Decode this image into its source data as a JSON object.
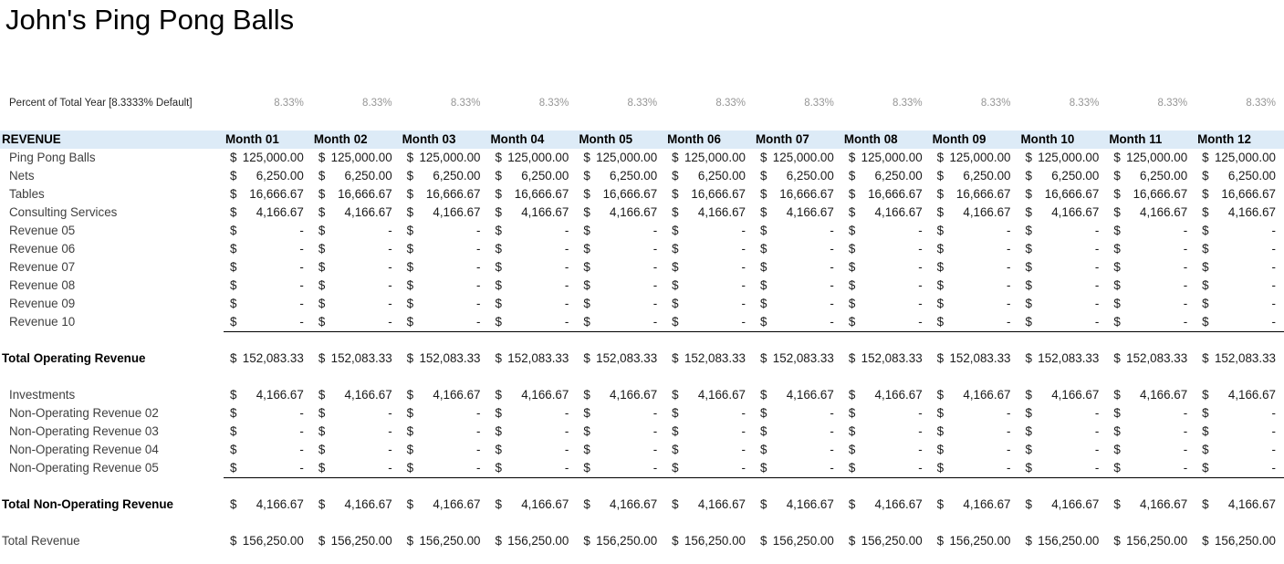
{
  "app": {
    "title": "John's Ping Pong Balls"
  },
  "colors": {
    "sheet_bg": "#ffffff",
    "title_color": "#000000",
    "header_bg": "#DDEBF7",
    "header_text": "#000000",
    "label_color": "#3f3f3f",
    "total_label_color": "#000000",
    "value_color": "#1a1a1a",
    "percent_label_color": "#262626",
    "percent_value_color": "#969696",
    "rule_color": "#000000"
  },
  "currency_symbol": "$",
  "percent_row": {
    "label": "Percent of Total Year [8.3333% Default]",
    "values": [
      "8.33%",
      "8.33%",
      "8.33%",
      "8.33%",
      "8.33%",
      "8.33%",
      "8.33%",
      "8.33%",
      "8.33%",
      "8.33%",
      "8.33%",
      "8.33%"
    ]
  },
  "table": {
    "header_label": "REVENUE",
    "months": [
      "Month 01",
      "Month 02",
      "Month 03",
      "Month 04",
      "Month 05",
      "Month 06",
      "Month 07",
      "Month 08",
      "Month 09",
      "Month 10",
      "Month 11",
      "Month 12"
    ],
    "rows": [
      {
        "label": "Ping Pong Balls",
        "type": "item",
        "indent": true,
        "underline": false,
        "bold": false,
        "values": [
          "125,000.00",
          "125,000.00",
          "125,000.00",
          "125,000.00",
          "125,000.00",
          "125,000.00",
          "125,000.00",
          "125,000.00",
          "125,000.00",
          "125,000.00",
          "125,000.00",
          "125,000.00"
        ]
      },
      {
        "label": "Nets",
        "type": "item",
        "indent": true,
        "underline": false,
        "bold": false,
        "values": [
          "6,250.00",
          "6,250.00",
          "6,250.00",
          "6,250.00",
          "6,250.00",
          "6,250.00",
          "6,250.00",
          "6,250.00",
          "6,250.00",
          "6,250.00",
          "6,250.00",
          "6,250.00"
        ]
      },
      {
        "label": "Tables",
        "type": "item",
        "indent": true,
        "underline": false,
        "bold": false,
        "values": [
          "16,666.67",
          "16,666.67",
          "16,666.67",
          "16,666.67",
          "16,666.67",
          "16,666.67",
          "16,666.67",
          "16,666.67",
          "16,666.67",
          "16,666.67",
          "16,666.67",
          "16,666.67"
        ]
      },
      {
        "label": "Consulting Services",
        "type": "item",
        "indent": true,
        "underline": false,
        "bold": false,
        "values": [
          "4,166.67",
          "4,166.67",
          "4,166.67",
          "4,166.67",
          "4,166.67",
          "4,166.67",
          "4,166.67",
          "4,166.67",
          "4,166.67",
          "4,166.67",
          "4,166.67",
          "4,166.67"
        ]
      },
      {
        "label": "Revenue 05",
        "type": "item",
        "indent": true,
        "underline": false,
        "bold": false,
        "values": [
          "-",
          "-",
          "-",
          "-",
          "-",
          "-",
          "-",
          "-",
          "-",
          "-",
          "-",
          "-"
        ]
      },
      {
        "label": "Revenue 06",
        "type": "item",
        "indent": true,
        "underline": false,
        "bold": false,
        "values": [
          "-",
          "-",
          "-",
          "-",
          "-",
          "-",
          "-",
          "-",
          "-",
          "-",
          "-",
          "-"
        ]
      },
      {
        "label": "Revenue 07",
        "type": "item",
        "indent": true,
        "underline": false,
        "bold": false,
        "values": [
          "-",
          "-",
          "-",
          "-",
          "-",
          "-",
          "-",
          "-",
          "-",
          "-",
          "-",
          "-"
        ]
      },
      {
        "label": "Revenue 08",
        "type": "item",
        "indent": true,
        "underline": false,
        "bold": false,
        "values": [
          "-",
          "-",
          "-",
          "-",
          "-",
          "-",
          "-",
          "-",
          "-",
          "-",
          "-",
          "-"
        ]
      },
      {
        "label": "Revenue 09",
        "type": "item",
        "indent": true,
        "underline": false,
        "bold": false,
        "values": [
          "-",
          "-",
          "-",
          "-",
          "-",
          "-",
          "-",
          "-",
          "-",
          "-",
          "-",
          "-"
        ]
      },
      {
        "label": "Revenue 10",
        "type": "item",
        "indent": true,
        "underline": true,
        "bold": false,
        "values": [
          "-",
          "-",
          "-",
          "-",
          "-",
          "-",
          "-",
          "-",
          "-",
          "-",
          "-",
          "-"
        ]
      },
      {
        "type": "spacer"
      },
      {
        "label": "Total Operating Revenue",
        "type": "total",
        "indent": false,
        "underline": false,
        "bold": true,
        "values": [
          "152,083.33",
          "152,083.33",
          "152,083.33",
          "152,083.33",
          "152,083.33",
          "152,083.33",
          "152,083.33",
          "152,083.33",
          "152,083.33",
          "152,083.33",
          "152,083.33",
          "152,083.33"
        ]
      },
      {
        "type": "spacer"
      },
      {
        "label": "Investments",
        "type": "item",
        "indent": true,
        "underline": false,
        "bold": false,
        "values": [
          "4,166.67",
          "4,166.67",
          "4,166.67",
          "4,166.67",
          "4,166.67",
          "4,166.67",
          "4,166.67",
          "4,166.67",
          "4,166.67",
          "4,166.67",
          "4,166.67",
          "4,166.67"
        ]
      },
      {
        "label": "Non-Operating Revenue 02",
        "type": "item",
        "indent": true,
        "underline": false,
        "bold": false,
        "values": [
          "-",
          "-",
          "-",
          "-",
          "-",
          "-",
          "-",
          "-",
          "-",
          "-",
          "-",
          "-"
        ]
      },
      {
        "label": "Non-Operating Revenue 03",
        "type": "item",
        "indent": true,
        "underline": false,
        "bold": false,
        "values": [
          "-",
          "-",
          "-",
          "-",
          "-",
          "-",
          "-",
          "-",
          "-",
          "-",
          "-",
          "-"
        ]
      },
      {
        "label": "Non-Operating Revenue 04",
        "type": "item",
        "indent": true,
        "underline": false,
        "bold": false,
        "values": [
          "-",
          "-",
          "-",
          "-",
          "-",
          "-",
          "-",
          "-",
          "-",
          "-",
          "-",
          "-"
        ]
      },
      {
        "label": "Non-Operating Revenue 05",
        "type": "item",
        "indent": true,
        "underline": true,
        "bold": false,
        "values": [
          "-",
          "-",
          "-",
          "-",
          "-",
          "-",
          "-",
          "-",
          "-",
          "-",
          "-",
          "-"
        ]
      },
      {
        "type": "spacer"
      },
      {
        "label": "Total Non-Operating Revenue",
        "type": "total",
        "indent": false,
        "underline": false,
        "bold": true,
        "values": [
          "4,166.67",
          "4,166.67",
          "4,166.67",
          "4,166.67",
          "4,166.67",
          "4,166.67",
          "4,166.67",
          "4,166.67",
          "4,166.67",
          "4,166.67",
          "4,166.67",
          "4,166.67"
        ]
      },
      {
        "type": "spacer"
      },
      {
        "label": "Total Revenue",
        "type": "total",
        "indent": false,
        "underline": false,
        "bold": false,
        "values": [
          "156,250.00",
          "156,250.00",
          "156,250.00",
          "156,250.00",
          "156,250.00",
          "156,250.00",
          "156,250.00",
          "156,250.00",
          "156,250.00",
          "156,250.00",
          "156,250.00",
          "156,250.00"
        ]
      }
    ]
  }
}
